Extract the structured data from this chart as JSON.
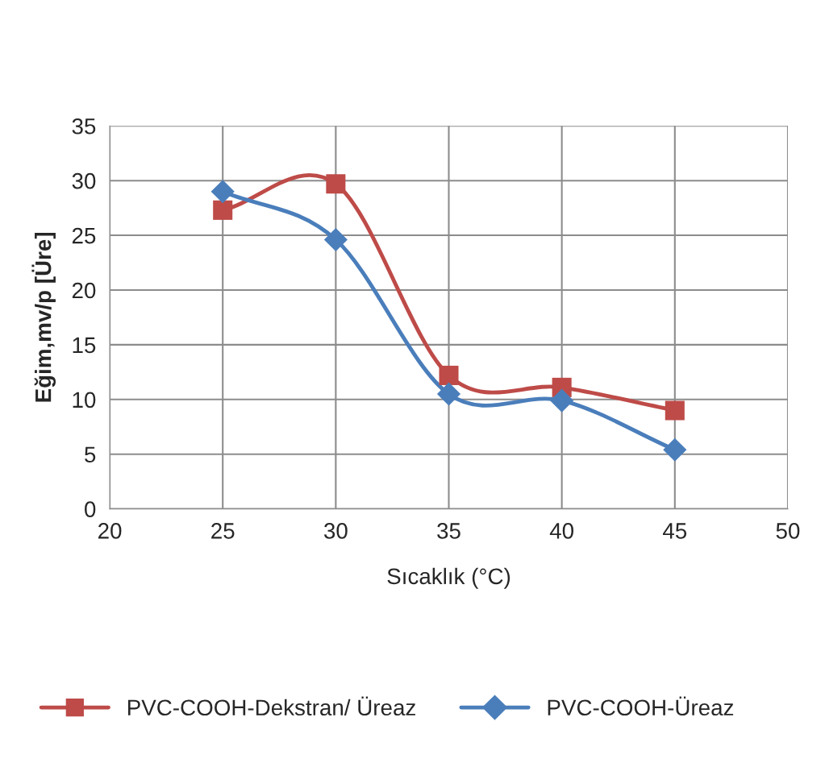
{
  "chart_data": {
    "type": "line",
    "xlabel": "Sıcaklık (°C)",
    "ylabel": "Eğim,mv/p [Üre]",
    "x": [
      25,
      30,
      35,
      40,
      45
    ],
    "series": [
      {
        "name": "PVC-COOH-Dekstran/ Üreaz",
        "color": "#be4b48",
        "marker": "square",
        "values": [
          27.3,
          29.7,
          12.2,
          11.1,
          9.0
        ]
      },
      {
        "name": "PVC-COOH-Üreaz",
        "color": "#4a7ebb",
        "marker": "diamond",
        "values": [
          29.0,
          24.6,
          10.5,
          9.9,
          5.4
        ]
      }
    ],
    "xlim": [
      20,
      50
    ],
    "xticks": [
      20,
      25,
      30,
      35,
      40,
      45,
      50
    ],
    "ylim": [
      0,
      35
    ],
    "yticks": [
      0,
      5,
      10,
      15,
      20,
      25,
      30,
      35
    ],
    "grid": true,
    "legend": "bottom",
    "line_style": "solid"
  }
}
